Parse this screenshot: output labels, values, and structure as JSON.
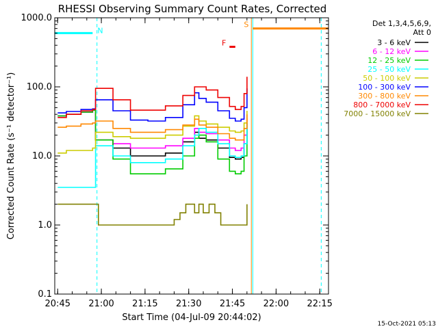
{
  "chart_data": {
    "type": "line",
    "title": "RHESSI Observing Summary Count Rates, Corrected",
    "xlabel": "Start Time (04-Jul-09 20:44:02)",
    "ylabel": "Corrected Count Rate (s⁻¹ detector⁻¹)",
    "yscale": "log",
    "ylim": [
      0.1,
      1000
    ],
    "xlim_minutes": [
      0,
      94
    ],
    "x_ticks": [
      {
        "m": 1,
        "label": "20:45"
      },
      {
        "m": 16,
        "label": "21:00"
      },
      {
        "m": 31,
        "label": "21:15"
      },
      {
        "m": 46,
        "label": "21:30"
      },
      {
        "m": 61,
        "label": "21:45"
      },
      {
        "m": 76,
        "label": "22:00"
      },
      {
        "m": 91,
        "label": "22:15"
      }
    ],
    "y_ticks": [
      {
        "v": 0.1,
        "label": "0.1"
      },
      {
        "v": 1,
        "label": "1.0"
      },
      {
        "v": 10,
        "label": "10.0"
      },
      {
        "v": 100,
        "label": "100.0"
      },
      {
        "v": 1000,
        "label": "1000.0"
      }
    ],
    "grid": false,
    "legend_position": "right",
    "legend_header": [
      "Det 1,3,4,5,6,9,",
      "Att 0"
    ],
    "timestamp": "15-Oct-2021 05:13",
    "series": [
      {
        "name": "3 - 6 keV",
        "color": "#000000",
        "points": [
          [
            1,
            38
          ],
          [
            4,
            40
          ],
          [
            9,
            43
          ],
          [
            13,
            46
          ],
          [
            14,
            17
          ],
          [
            20,
            13
          ],
          [
            26,
            10
          ],
          [
            32,
            10
          ],
          [
            38,
            11
          ],
          [
            44,
            16
          ],
          [
            48,
            22
          ],
          [
            49.5,
            18
          ],
          [
            52,
            17
          ],
          [
            56,
            13
          ],
          [
            60,
            9.5
          ],
          [
            62,
            9
          ],
          [
            64,
            9.5
          ],
          [
            65,
            15
          ],
          [
            66,
            25
          ]
        ]
      },
      {
        "name": "6 - 12 keV",
        "color": "#ff00ff",
        "points": [
          [
            1,
            38
          ],
          [
            4,
            40
          ],
          [
            9,
            43
          ],
          [
            13,
            46
          ],
          [
            14,
            17
          ],
          [
            20,
            15
          ],
          [
            26,
            13
          ],
          [
            32,
            13
          ],
          [
            38,
            14
          ],
          [
            44,
            18
          ],
          [
            48,
            25
          ],
          [
            49.5,
            22
          ],
          [
            52,
            21
          ],
          [
            56,
            17
          ],
          [
            60,
            13
          ],
          [
            62,
            12
          ],
          [
            64,
            13
          ],
          [
            65,
            20
          ],
          [
            66,
            35
          ]
        ]
      },
      {
        "name": "12 - 25 keV",
        "color": "#00cc00",
        "points": [
          [
            1,
            38
          ],
          [
            4,
            40
          ],
          [
            9,
            43
          ],
          [
            13,
            46
          ],
          [
            14,
            17
          ],
          [
            20,
            9
          ],
          [
            26,
            5.5
          ],
          [
            32,
            5.5
          ],
          [
            38,
            6.5
          ],
          [
            44,
            10
          ],
          [
            48,
            18
          ],
          [
            49.5,
            20
          ],
          [
            52,
            16
          ],
          [
            56,
            9
          ],
          [
            60,
            6
          ],
          [
            62,
            5.5
          ],
          [
            64,
            6
          ],
          [
            65,
            10
          ],
          [
            66,
            30
          ]
        ]
      },
      {
        "name": "25 - 50 keV",
        "color": "#00ffff",
        "points": [
          [
            1,
            3.5
          ],
          [
            4,
            3.5
          ],
          [
            9,
            3.5
          ],
          [
            13,
            3.5
          ],
          [
            14,
            14
          ],
          [
            20,
            10
          ],
          [
            26,
            8
          ],
          [
            32,
            8
          ],
          [
            38,
            9
          ],
          [
            44,
            14
          ],
          [
            48,
            20
          ],
          [
            49.5,
            25
          ],
          [
            52,
            22
          ],
          [
            56,
            15
          ],
          [
            60,
            10
          ],
          [
            62,
            9.5
          ],
          [
            64,
            10
          ],
          [
            65,
            15
          ],
          [
            66,
            30
          ]
        ]
      },
      {
        "name": "50 - 100 keV",
        "color": "#cccc00",
        "points": [
          [
            1,
            11
          ],
          [
            4,
            12
          ],
          [
            9,
            12
          ],
          [
            13,
            13
          ],
          [
            14,
            22
          ],
          [
            20,
            19
          ],
          [
            26,
            18
          ],
          [
            32,
            18
          ],
          [
            38,
            20
          ],
          [
            44,
            27
          ],
          [
            48,
            38
          ],
          [
            49.5,
            32
          ],
          [
            52,
            29
          ],
          [
            56,
            26
          ],
          [
            60,
            23
          ],
          [
            62,
            22
          ],
          [
            64,
            23
          ],
          [
            65,
            30
          ],
          [
            66,
            45
          ]
        ]
      },
      {
        "name": "100 - 300 keV",
        "color": "#0000ff",
        "points": [
          [
            1,
            42
          ],
          [
            4,
            44
          ],
          [
            9,
            47
          ],
          [
            13,
            48
          ],
          [
            14,
            65
          ],
          [
            20,
            45
          ],
          [
            26,
            33
          ],
          [
            32,
            32
          ],
          [
            38,
            36
          ],
          [
            44,
            55
          ],
          [
            48,
            82
          ],
          [
            49.5,
            68
          ],
          [
            52,
            60
          ],
          [
            56,
            45
          ],
          [
            60,
            35
          ],
          [
            62,
            32
          ],
          [
            64,
            34
          ],
          [
            65,
            50
          ],
          [
            66,
            95
          ]
        ]
      },
      {
        "name": "300 - 800 keV",
        "color": "#ff8800",
        "points": [
          [
            1,
            26
          ],
          [
            4,
            27
          ],
          [
            9,
            29
          ],
          [
            13,
            30
          ],
          [
            14,
            32
          ],
          [
            20,
            25
          ],
          [
            26,
            22
          ],
          [
            32,
            22
          ],
          [
            38,
            24
          ],
          [
            44,
            28
          ],
          [
            48,
            34
          ],
          [
            49.5,
            28
          ],
          [
            52,
            26
          ],
          [
            56,
            21
          ],
          [
            60,
            18
          ],
          [
            62,
            17
          ],
          [
            64,
            17
          ],
          [
            65,
            25
          ],
          [
            66,
            40
          ]
        ]
      },
      {
        "name": "800 - 7000 keV",
        "color": "#ee0000",
        "points": [
          [
            1,
            36
          ],
          [
            4,
            40
          ],
          [
            9,
            45
          ],
          [
            13,
            47
          ],
          [
            14,
            95
          ],
          [
            20,
            65
          ],
          [
            26,
            46
          ],
          [
            32,
            46
          ],
          [
            38,
            53
          ],
          [
            44,
            75
          ],
          [
            48,
            100
          ],
          [
            49.5,
            100
          ],
          [
            52,
            90
          ],
          [
            56,
            70
          ],
          [
            60,
            52
          ],
          [
            62,
            47
          ],
          [
            64,
            52
          ],
          [
            65,
            80
          ],
          [
            66,
            140
          ]
        ]
      },
      {
        "name": "7000 - 15000 keV",
        "color": "#808000",
        "points": [
          [
            1,
            2
          ],
          [
            4,
            2
          ],
          [
            7,
            2
          ],
          [
            10,
            2
          ],
          [
            13,
            2
          ],
          [
            15,
            1
          ],
          [
            17,
            1
          ],
          [
            27,
            1
          ],
          [
            29,
            1
          ],
          [
            39,
            1
          ],
          [
            41,
            1.2
          ],
          [
            43,
            1.5
          ],
          [
            45,
            2
          ],
          [
            47,
            2
          ],
          [
            48,
            1.5
          ],
          [
            49.5,
            2
          ],
          [
            51,
            1.5
          ],
          [
            53,
            2
          ],
          [
            55,
            1.5
          ],
          [
            57,
            1
          ],
          [
            59,
            1
          ],
          [
            63,
            1
          ],
          [
            66,
            2
          ]
        ]
      }
    ],
    "state_bars": [
      {
        "label": "N",
        "color": "#00ffff",
        "x_start": 0,
        "x_end": 13,
        "y": 600
      },
      {
        "label": "S",
        "color": "#ff8800",
        "x_start": 68,
        "x_end": 94,
        "y": 700
      },
      {
        "label": "F",
        "color": "#ee0000",
        "x_start": 60,
        "x_end": 62,
        "y": 380
      }
    ],
    "vertical_lines": [
      {
        "x": 0,
        "color": "#00ffff",
        "style": "solid"
      },
      {
        "x": 14.5,
        "color": "#00ffff",
        "style": "dashed"
      },
      {
        "x": 67.5,
        "color": "#ff8800",
        "style": "solid"
      },
      {
        "x": 68,
        "color": "#00ffff",
        "style": "solid"
      },
      {
        "x": 91.5,
        "color": "#00ffff",
        "style": "dashed"
      }
    ]
  }
}
